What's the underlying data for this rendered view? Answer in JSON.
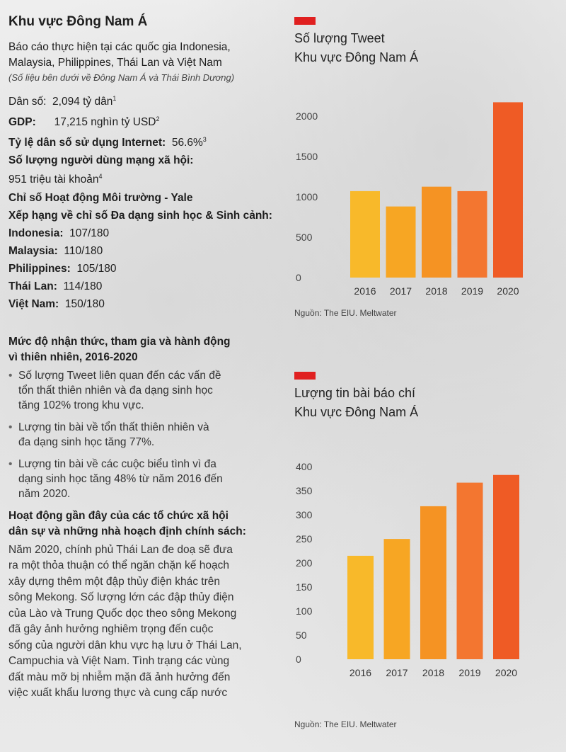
{
  "left": {
    "title": "Khu vực Đông Nam Á",
    "intro_line1": "Báo cáo thực hiện tại các quốc gia Indonesia,",
    "intro_line2": "Malaysia, Philippines, Thái Lan và Việt Nam",
    "note": "(Số liệu bên dưới về Đông Nam Á và Thái Bình Dương)",
    "population_label": "Dân số:",
    "population_value": "2,094 tỷ dân",
    "population_ref": "1",
    "gdp_label": "GDP:",
    "gdp_value": "17,215 nghìn tỷ USD",
    "gdp_ref": "2",
    "internet_label": "Tỷ lệ dân số sử dụng Internet:",
    "internet_value": "56.6%",
    "internet_ref": "3",
    "social_label": "Số lượng người dùng mạng xã hội:",
    "social_value": "951 triệu tài khoản",
    "social_ref": "4",
    "yale_line1": "Chỉ số Hoạt động Môi trường - Yale",
    "yale_line2": "Xếp hạng về chỉ số Đa dạng sinh học & Sinh cảnh:",
    "rankings": [
      {
        "country": "Indonesia:",
        "value": "107/180"
      },
      {
        "country": "Malaysia:",
        "value": "110/180"
      },
      {
        "country": "Philippines:",
        "value": "105/180"
      },
      {
        "country": "Thái Lan:",
        "value": "114/180"
      },
      {
        "country": "Việt Nam:",
        "value": "150/180"
      }
    ],
    "awareness_heading_line1": "Mức độ nhận thức, tham gia và hành động",
    "awareness_heading_line2": "vì thiên nhiên, 2016-2020",
    "bullets": [
      {
        "l1": "Số lượng Tweet liên quan đến các vấn đề",
        "l2": "tổn thất thiên nhiên và đa dạng sinh học",
        "l3": "tăng 102% trong khu vực."
      },
      {
        "l1": "Lượng tin bài về tổn thất thiên nhiên và",
        "l2": "đa dạng sinh học tăng 77%.",
        "l3": ""
      },
      {
        "l1": "Lượng tin bài về các cuộc biểu tình vì đa",
        "l2": "dạng sinh học tăng 48% từ năm 2016 đến",
        "l3": "năm 2020."
      }
    ],
    "civil_heading_line1": "Hoạt động gần đây của các tổ chức xã hội",
    "civil_heading_line2": "dân sự và những nhà hoạch định chính sách:",
    "para_lines": [
      "Năm 2020, chính phủ Thái Lan đe doạ sẽ đưa",
      "ra một thỏa thuận có thể ngăn chặn kế hoạch",
      "xây dựng thêm một đập thủy điện khác trên",
      "sông Mekong. Số lượng lớn các đập thủy điện",
      "của Lào và Trung Quốc dọc theo sông Mekong",
      "đã gây ảnh hưởng nghiêm trọng đến cuộc",
      "sống của người dân khu vực hạ lưu ở Thái Lan,",
      "Campuchia và Việt Nam. Tình trạng các vùng",
      "đất màu mỡ bị nhiễm mặn đã ảnh hưởng đến",
      "việc xuất khẩu lương thực và cung cấp nước"
    ]
  },
  "colors": {
    "accent_red": "#e02020",
    "bars": [
      "#f8b92a",
      "#f7a623",
      "#f59323",
      "#f37630",
      "#ef5b25"
    ]
  },
  "chart_data": [
    {
      "type": "bar",
      "title_line1": "Số lượng Tweet",
      "title_line2": "Khu vực Đông Nam Á",
      "categories": [
        "2016",
        "2017",
        "2018",
        "2019",
        "2020"
      ],
      "values": [
        1070,
        880,
        1125,
        1070,
        2170
      ],
      "yticks": [
        0,
        500,
        1000,
        1500,
        2000
      ],
      "ylim": [
        0,
        2200
      ],
      "xlabel": "",
      "ylabel": "",
      "source": "Nguồn: The EIU. Meltwater"
    },
    {
      "type": "bar",
      "title_line1": "Lượng tin bài báo chí",
      "title_line2": "Khu vực Đông Nam Á",
      "categories": [
        "2016",
        "2017",
        "2018",
        "2019",
        "2020"
      ],
      "values": [
        215,
        250,
        318,
        367,
        383
      ],
      "yticks": [
        0,
        50,
        100,
        150,
        200,
        250,
        300,
        350,
        400
      ],
      "ylim": [
        0,
        415
      ],
      "xlabel": "",
      "ylabel": "",
      "source": "Nguồn: The EIU. Meltwater"
    }
  ]
}
